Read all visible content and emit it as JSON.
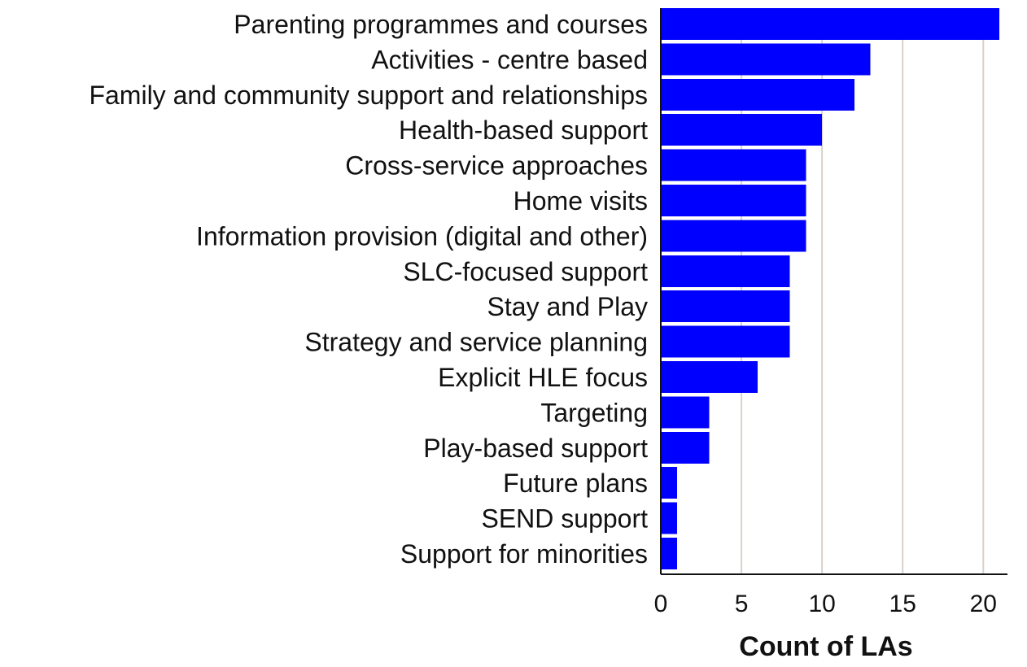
{
  "chart_data": {
    "type": "bar",
    "orientation": "horizontal",
    "categories": [
      "Parenting programmes and courses",
      "Activities - centre based",
      "Family and community support and relationships",
      "Health-based support",
      "Cross-service approaches",
      "Home visits",
      "Information provision (digital and other)",
      "SLC-focused support",
      "Stay and Play",
      "Strategy and service planning",
      "Explicit HLE focus",
      "Targeting",
      "Play-based support",
      "Future plans",
      "SEND support",
      "Support for minorities"
    ],
    "values": [
      21,
      13,
      12,
      10,
      9,
      9,
      9,
      8,
      8,
      8,
      6,
      3,
      3,
      1,
      1,
      1
    ],
    "xlabel": "Count of LAs",
    "ylabel": "",
    "xlim": [
      0,
      21.5
    ],
    "xticks": [
      "0",
      "5",
      "10",
      "15",
      "20"
    ],
    "grid": "vertical",
    "legend": "none",
    "colors": {
      "bar": "#0000ff",
      "grid": "#d8d2cc",
      "text": "#111111"
    }
  }
}
